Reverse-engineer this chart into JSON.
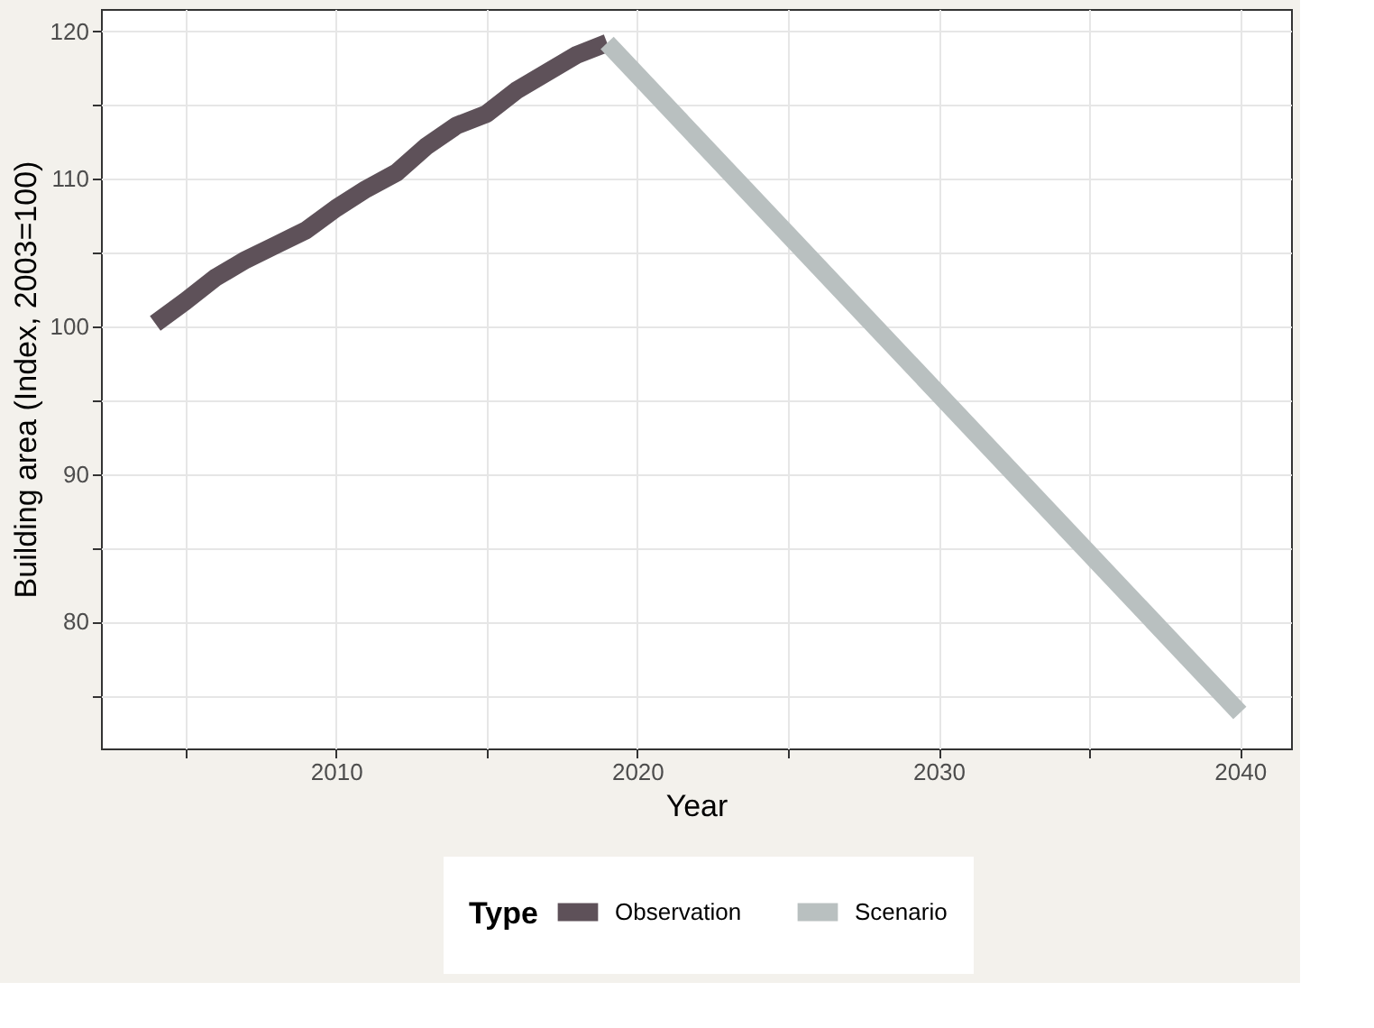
{
  "chart_data": {
    "type": "line",
    "xlabel": "Year",
    "ylabel": "Building area (Index, 2003=100)",
    "legend_title": "Type",
    "legend": "bottom",
    "grid": true,
    "xlim": [
      2002.2,
      2041.7
    ],
    "ylim": [
      71.4,
      121.5
    ],
    "xticks": [
      {
        "value": 2005,
        "label": null
      },
      2010,
      {
        "value": 2015,
        "label": null
      },
      2020,
      {
        "value": 2025,
        "label": null
      },
      2030,
      {
        "value": 2035,
        "label": null
      },
      2040
    ],
    "yticks": [
      {
        "value": 75,
        "label": null
      },
      80,
      {
        "value": 85,
        "label": null
      },
      90,
      {
        "value": 95,
        "label": null
      },
      100,
      {
        "value": 105,
        "label": null
      },
      110,
      {
        "value": 115,
        "label": null
      },
      120
    ],
    "series": [
      {
        "name": "Observation",
        "color": "#5e5159",
        "x": [
          2004,
          2005,
          2006,
          2007,
          2008,
          2009,
          2010,
          2011,
          2012,
          2013,
          2014,
          2015,
          2016,
          2017,
          2018,
          2019
        ],
        "values": [
          100.2,
          101.7,
          103.3,
          104.5,
          105.5,
          106.5,
          108,
          109.3,
          110.4,
          112.2,
          113.6,
          114.4,
          116,
          117.2,
          118.4,
          119.2
        ]
      },
      {
        "name": "Scenario",
        "color": "#b9c0c0",
        "x": [
          2019,
          2040
        ],
        "values": [
          119.2,
          73.8
        ]
      }
    ]
  }
}
